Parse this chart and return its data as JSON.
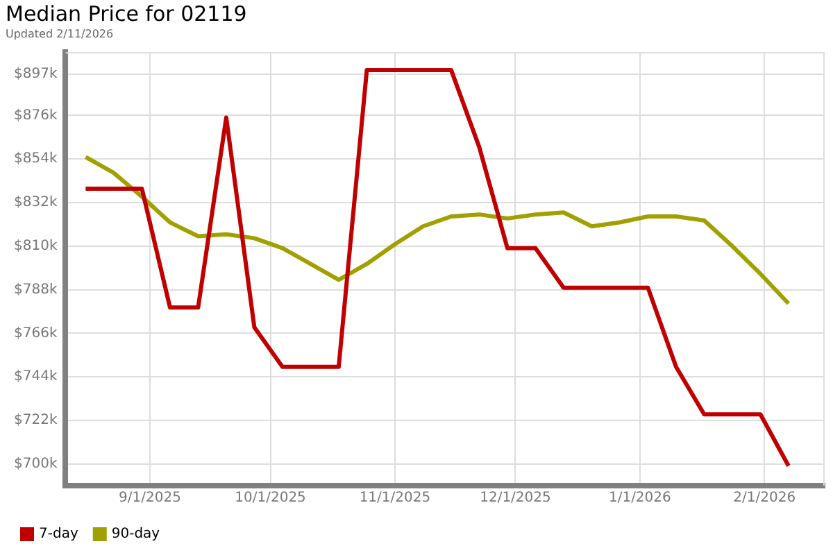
{
  "chart_data": {
    "type": "line",
    "title": "Median Price for 02119",
    "subtitle": "Updated 2/11/2026",
    "x": [
      "2025-08-16",
      "2025-08-23",
      "2025-08-30",
      "2025-09-06",
      "2025-09-13",
      "2025-09-20",
      "2025-09-27",
      "2025-10-04",
      "2025-10-11",
      "2025-10-18",
      "2025-10-25",
      "2025-11-01",
      "2025-11-08",
      "2025-11-15",
      "2025-11-22",
      "2025-11-29",
      "2025-12-06",
      "2025-12-13",
      "2025-12-20",
      "2025-12-27",
      "2026-01-03",
      "2026-01-10",
      "2026-01-17",
      "2026-01-24",
      "2026-01-31",
      "2026-02-07"
    ],
    "series": [
      {
        "name": "7-day",
        "color": "#c00000",
        "values": [
          839,
          839,
          839,
          779,
          779,
          875,
          769,
          749,
          749,
          749,
          899,
          899,
          899,
          899,
          860,
          809,
          809,
          789,
          789,
          789,
          789,
          749,
          725,
          725,
          725,
          699
        ]
      },
      {
        "name": "90-day",
        "color": "#a0a000",
        "values": [
          855,
          847,
          835,
          822,
          815,
          816,
          814,
          809,
          801,
          793,
          801,
          811,
          820,
          825,
          826,
          824,
          826,
          827,
          820,
          822,
          825,
          825,
          823,
          810,
          796,
          781
        ]
      }
    ],
    "xlim": [
      "2025-08-11",
      "2026-02-16"
    ],
    "xticks": [
      {
        "value": "2025-09-01",
        "label": "9/1/2025"
      },
      {
        "value": "2025-10-01",
        "label": "10/1/2025"
      },
      {
        "value": "2025-11-01",
        "label": "11/1/2025"
      },
      {
        "value": "2025-12-01",
        "label": "12/1/2025"
      },
      {
        "value": "2026-01-01",
        "label": "1/1/2026"
      },
      {
        "value": "2026-02-01",
        "label": "2/1/2026"
      }
    ],
    "ylim": [
      689,
      908
    ],
    "yticks": [
      {
        "value": 700,
        "label": "$700k"
      },
      {
        "value": 722,
        "label": "$722k"
      },
      {
        "value": 744,
        "label": "$744k"
      },
      {
        "value": 766,
        "label": "$766k"
      },
      {
        "value": 788,
        "label": "$788k"
      },
      {
        "value": 810,
        "label": "$810k"
      },
      {
        "value": 832,
        "label": "$832k"
      },
      {
        "value": 854,
        "label": "$854k"
      },
      {
        "value": 876,
        "label": "$876k"
      },
      {
        "value": 897,
        "label": "$897k"
      }
    ],
    "grid": true,
    "legend": "bottom left",
    "marker": "none",
    "line_style": "solid"
  }
}
